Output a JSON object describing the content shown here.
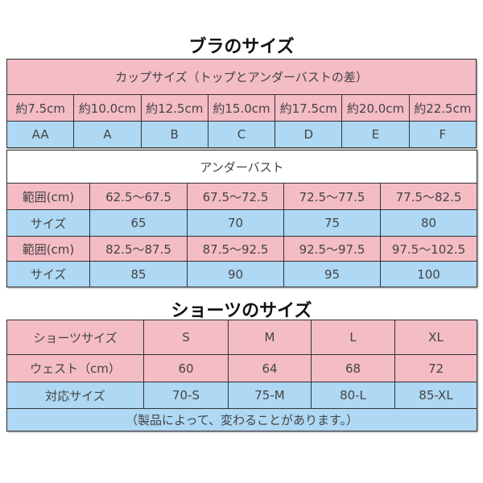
{
  "colors": {
    "pink": "#f4bcc5",
    "blue": "#aed8f3"
  },
  "bra": {
    "title": "ブラのサイズ",
    "cup_header": "カップサイズ（トップとアンダーバストの差）",
    "differences": [
      "約7.5cm",
      "約10.0cm",
      "約12.5cm",
      "約15.0cm",
      "約17.5cm",
      "約20.0cm",
      "約22.5cm"
    ],
    "cups": [
      "AA",
      "A",
      "B",
      "C",
      "D",
      "E",
      "F"
    ]
  },
  "underbust": {
    "header": "アンダーバスト",
    "rows": [
      {
        "label": "範囲(cm)",
        "values": [
          "62.5〜67.5",
          "67.5〜72.5",
          "72.5〜77.5",
          "77.5〜82.5"
        ]
      },
      {
        "label": "サイズ",
        "values": [
          "65",
          "70",
          "75",
          "80"
        ]
      },
      {
        "label": "範囲(cm)",
        "values": [
          "82.5〜87.5",
          "87.5〜92.5",
          "92.5〜97.5",
          "97.5〜102.5"
        ]
      },
      {
        "label": "サイズ",
        "values": [
          "85",
          "90",
          "95",
          "100"
        ]
      }
    ]
  },
  "shorts": {
    "title": "ショーツのサイズ",
    "rows": [
      {
        "label": "ショーツサイズ",
        "values": [
          "S",
          "M",
          "L",
          "XL"
        ]
      },
      {
        "label": "ウェスト（cm）",
        "values": [
          "60",
          "64",
          "68",
          "72"
        ]
      },
      {
        "label": "対応サイズ",
        "values": [
          "70-S",
          "75-M",
          "80-L",
          "85-XL"
        ]
      }
    ],
    "note": "（製品によって、変わることがあります。）"
  }
}
